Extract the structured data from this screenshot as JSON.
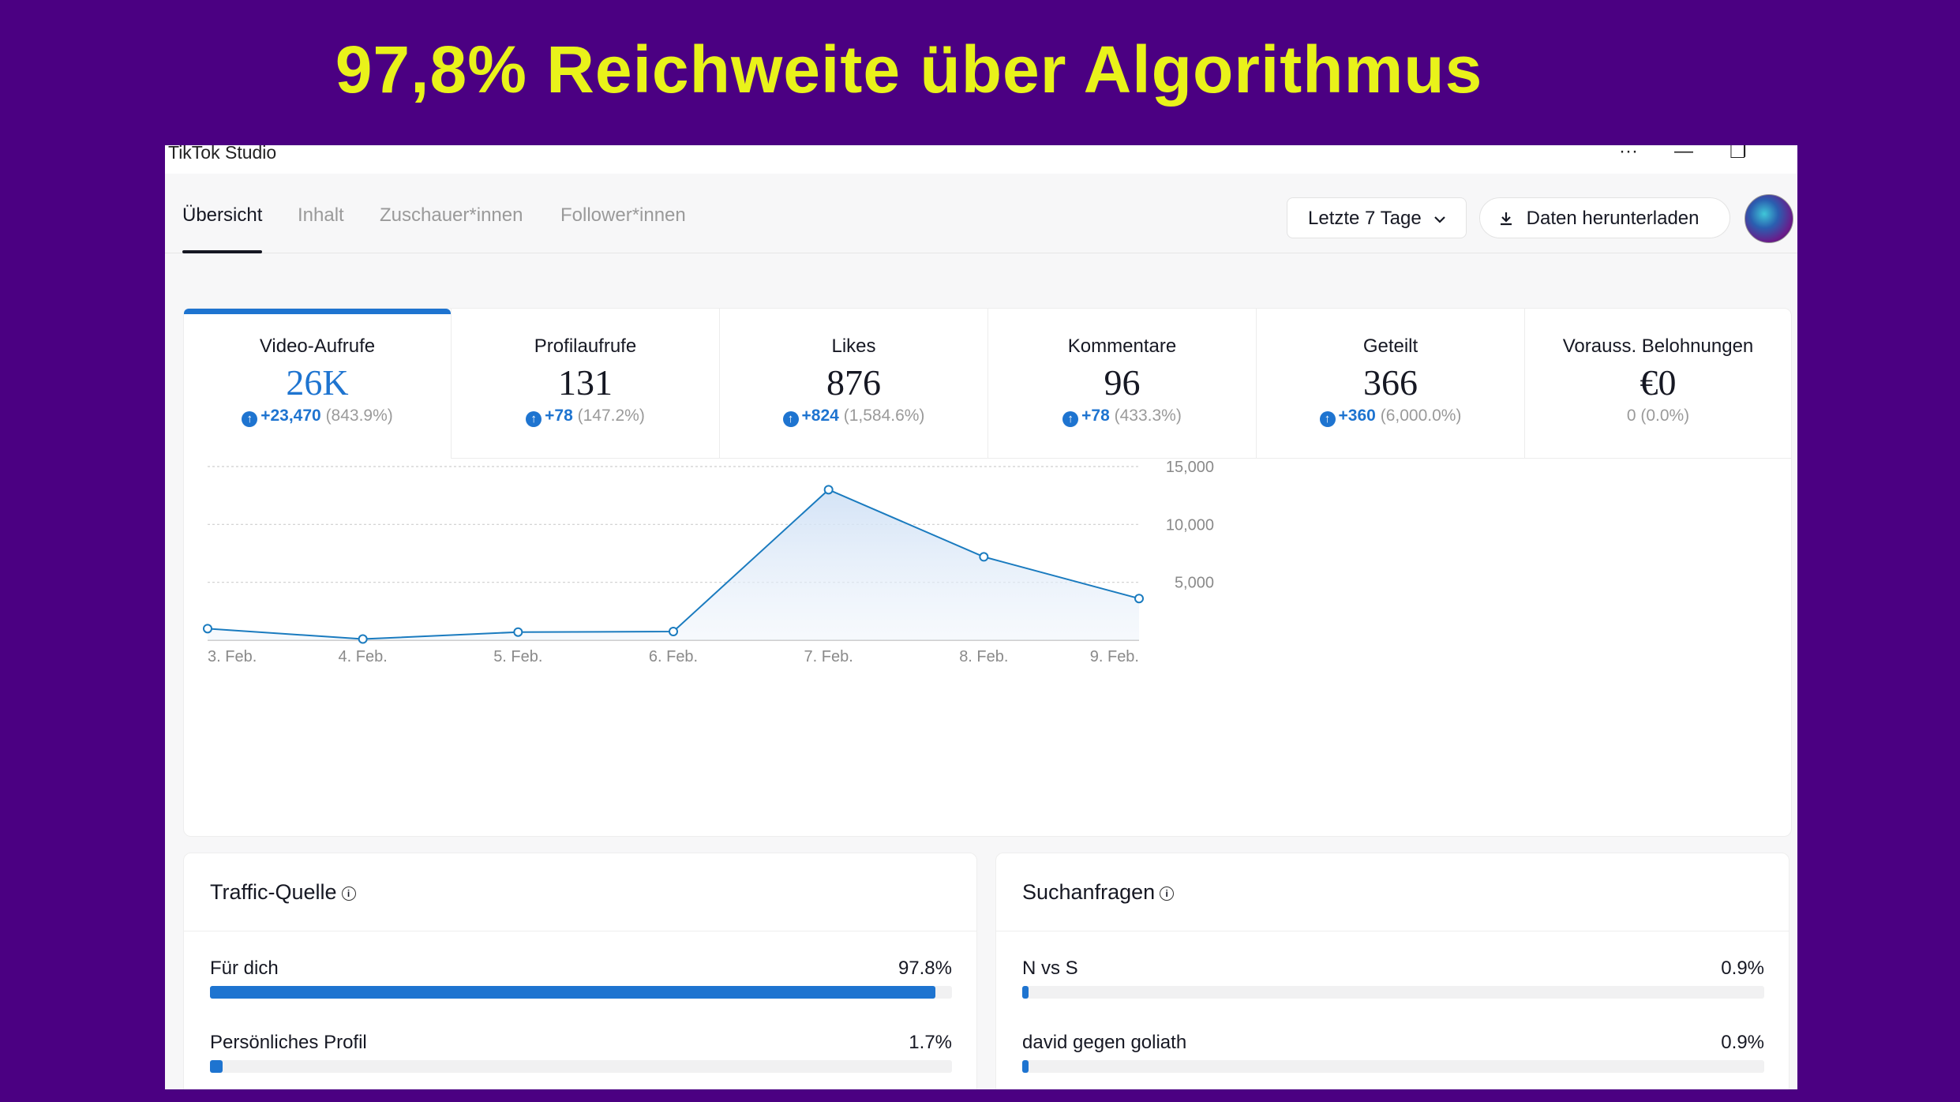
{
  "headline": "97,8% Reichweite über Algorithmus",
  "window": {
    "app_title": "TikTok Studio",
    "controls": {
      "more": "···",
      "minimize": "—",
      "restore": "❐"
    }
  },
  "nav": {
    "tabs": [
      {
        "label": "Übersicht",
        "active": true
      },
      {
        "label": "Inhalt",
        "active": false
      },
      {
        "label": "Zuschauer*innen",
        "active": false
      },
      {
        "label": "Follower*innen",
        "active": false
      }
    ],
    "date_range": "Letzte 7 Tage",
    "download_label": "Daten herunterladen"
  },
  "metrics": [
    {
      "label": "Video-Aufrufe",
      "value": "26K",
      "delta": "+23,470",
      "pct": "(843.9%)",
      "trend": "up"
    },
    {
      "label": "Profilaufrufe",
      "value": "131",
      "delta": "+78",
      "pct": "(147.2%)",
      "trend": "up"
    },
    {
      "label": "Likes",
      "value": "876",
      "delta": "+824",
      "pct": "(1,584.6%)",
      "trend": "up"
    },
    {
      "label": "Kommentare",
      "value": "96",
      "delta": "+78",
      "pct": "(433.3%)",
      "trend": "up"
    },
    {
      "label": "Geteilt",
      "value": "366",
      "delta": "+360",
      "pct": "(6,000.0%)",
      "trend": "up"
    },
    {
      "label": "Vorauss. Belohnungen",
      "value": "€0",
      "delta": "",
      "pct": "0 (0.0%)",
      "trend": "none"
    }
  ],
  "chart_data": {
    "type": "area",
    "title": "Video-Aufrufe",
    "x": [
      "3. Feb.",
      "4. Feb.",
      "5. Feb.",
      "6. Feb.",
      "7. Feb.",
      "8. Feb.",
      "9. Feb."
    ],
    "values": [
      1000,
      100,
      700,
      750,
      13000,
      7200,
      3600
    ],
    "ylim": [
      0,
      15000
    ],
    "yticks": [
      5000,
      10000,
      15000
    ],
    "ytick_labels": [
      "5,000",
      "10,000",
      "15,000"
    ],
    "grid": true,
    "line_color": "#1a7bbf"
  },
  "traffic": {
    "title": "Traffic-Quelle",
    "items": [
      {
        "label": "Für dich",
        "pct_label": "97.8%",
        "pct": 97.8
      },
      {
        "label": "Persönliches Profil",
        "pct_label": "1.7%",
        "pct": 1.7
      }
    ]
  },
  "search": {
    "title": "Suchanfragen",
    "items": [
      {
        "label": "N vs S",
        "pct_label": "0.9%",
        "pct": 0.9
      },
      {
        "label": "david gegen goliath",
        "pct_label": "0.9%",
        "pct": 0.9
      }
    ]
  }
}
